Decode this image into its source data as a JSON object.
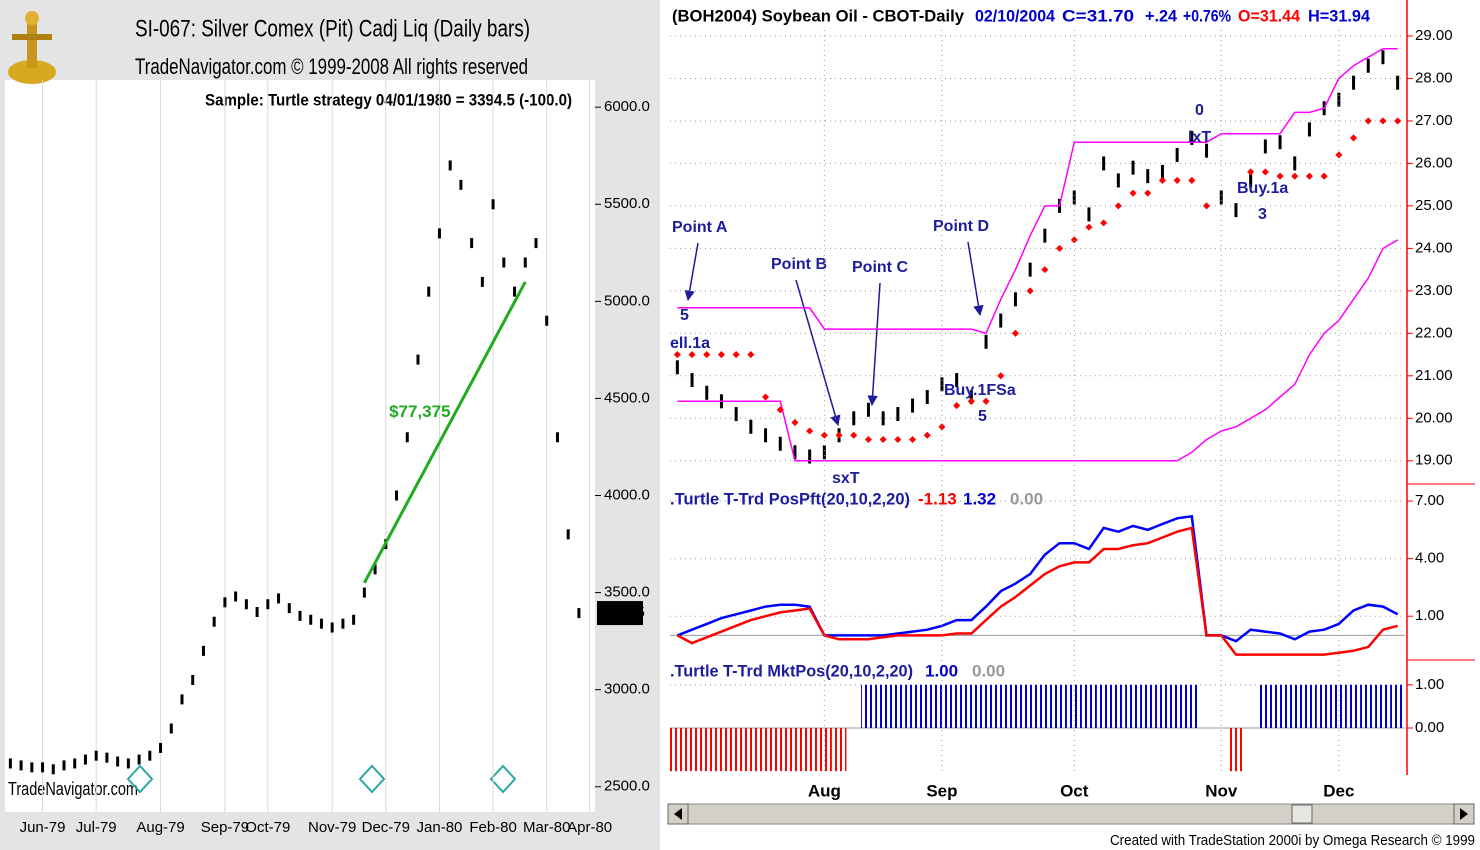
{
  "chart_data": [
    {
      "type": "dot",
      "title": "SI-067:  Silver Comex (Pit) Cadj Liq  (Daily bars)",
      "subtitle": "TradeNavigator.com © 1999-2008 All rights reserved",
      "annotation": "Sample: Turtle strategy   04/01/1980 = 3394.5 (-100.0)",
      "watermark": "TradeNavigator.com",
      "last_value": 3394.5,
      "categories": [
        null,
        null,
        null,
        "Jun-79",
        null,
        null,
        null,
        null,
        "Jul-79",
        null,
        null,
        null,
        null,
        null,
        "Aug-79",
        null,
        null,
        null,
        null,
        null,
        "Sep-79",
        null,
        null,
        null,
        "Oct-79",
        null,
        null,
        null,
        null,
        null,
        "Nov-79",
        null,
        null,
        null,
        null,
        "Dec-79",
        null,
        null,
        null,
        null,
        "Jan-80",
        null,
        null,
        null,
        null,
        "Feb-80",
        null,
        null,
        null,
        null,
        "Mar-80",
        null,
        null,
        null,
        "Apr-80"
      ],
      "series": [
        {
          "color": "#000000",
          "values": [
            2620,
            2610,
            2600,
            2600,
            2590,
            2610,
            2620,
            2640,
            2660,
            2650,
            2630,
            2620,
            2640,
            2660,
            2700,
            2800,
            2950,
            3050,
            3200,
            3350,
            3450,
            3480,
            3440,
            3400,
            3440,
            3470,
            3420,
            3380,
            3360,
            3340,
            3320,
            3340,
            3360,
            3500,
            3620,
            3750,
            4000,
            4300,
            4700,
            5050,
            5350,
            5700,
            5600,
            5300,
            5100,
            5500,
            5200,
            5050,
            5200,
            5300,
            4900,
            4300,
            3800,
            3394.5,
            null
          ]
        }
      ],
      "trade": {
        "label": "$77,375",
        "color": "#22aa22",
        "start": 33,
        "end": 48,
        "values": [
          3550,
          5100
        ]
      },
      "ylim": [
        2370,
        6140
      ],
      "yticks": [
        {
          "value": 2500,
          "label": "2500.0"
        },
        {
          "value": 3000,
          "label": "3000.0"
        },
        {
          "value": 3500,
          "label": "3500.0"
        },
        {
          "value": 4000,
          "label": "4000.0"
        },
        {
          "value": 4500,
          "label": "4500.0"
        },
        {
          "value": 5000,
          "label": "5000.0"
        },
        {
          "value": 5500,
          "label": "5500.0"
        },
        {
          "value": 6000,
          "label": "6000.0"
        }
      ],
      "grid": true
    },
    {
      "type": "price",
      "header": [
        {
          "text": "(BOH2004) Soybean Oil  - CBOT-Daily",
          "color": "#000000"
        },
        {
          "text": "02/10/2004",
          "color": "#0000cc"
        },
        {
          "text": "C=31.70",
          "color": "#0000cc"
        },
        {
          "text": "+.24",
          "color": "#0000cc"
        },
        {
          "text": "+0.76%",
          "color": "#0000cc"
        },
        {
          "text": "O=31.44",
          "color": "#ff0000"
        },
        {
          "text": "H=31.94",
          "color": "#0000cc"
        }
      ],
      "annotations": [
        "Point A",
        "Point B",
        "Point C",
        "Point D",
        "ell.1a",
        "Buy.1FSa",
        "sxT",
        "lxT",
        "Buy.1a",
        "5",
        "5",
        "0",
        "3"
      ],
      "series": [
        {
          "style": "bar",
          "color": "#000000",
          "values": [
            21.2,
            20.9,
            20.6,
            20.4,
            20.1,
            19.8,
            19.6,
            19.4,
            19.2,
            19.1,
            19.2,
            19.6,
            20.0,
            20.2,
            20.0,
            20.1,
            20.3,
            20.5,
            20.8,
            20.9,
            20.5,
            21.8,
            22.3,
            22.8,
            23.5,
            24.3,
            25.0,
            25.2,
            24.8,
            26.0,
            25.6,
            25.9,
            25.7,
            25.8,
            26.2,
            26.6,
            26.3,
            25.2,
            24.9,
            25.6,
            26.4,
            26.5,
            26.0,
            26.8,
            27.3,
            27.5,
            27.9,
            28.3,
            28.5,
            27.9
          ]
        },
        {
          "style": "line",
          "color": "#ff00ff",
          "values": [
            22.6,
            22.6,
            22.6,
            22.6,
            22.6,
            22.6,
            22.6,
            22.6,
            22.6,
            22.6,
            22.1,
            22.1,
            22.1,
            22.1,
            22.1,
            22.1,
            22.1,
            22.1,
            22.1,
            22.1,
            22.1,
            22.0,
            22.8,
            23.5,
            24.3,
            25.0,
            25.0,
            26.5,
            26.5,
            26.5,
            26.5,
            26.5,
            26.5,
            26.5,
            26.5,
            26.5,
            26.5,
            26.7,
            26.7,
            26.7,
            26.7,
            26.7,
            27.2,
            27.2,
            27.3,
            28.0,
            28.3,
            28.5,
            28.7,
            28.7
          ]
        },
        {
          "style": "line",
          "color": "#ff00ff",
          "values": [
            20.4,
            20.4,
            20.4,
            20.4,
            20.4,
            20.4,
            20.4,
            20.4,
            19.0,
            19.0,
            19.0,
            19.0,
            19.0,
            19.0,
            19.0,
            19.0,
            19.0,
            19.0,
            19.0,
            19.0,
            19.0,
            19.0,
            19.0,
            19.0,
            19.0,
            19.0,
            19.0,
            19.0,
            19.0,
            19.0,
            19.0,
            19.0,
            19.0,
            19.0,
            19.0,
            19.2,
            19.5,
            19.7,
            19.8,
            20.0,
            20.2,
            20.5,
            20.8,
            21.5,
            22.0,
            22.3,
            22.8,
            23.3,
            24.0,
            24.2
          ]
        },
        {
          "style": "dot",
          "color": "#ff0000",
          "values": [
            21.5,
            21.5,
            21.5,
            21.5,
            21.5,
            21.5,
            20.5,
            20.2,
            19.9,
            19.7,
            19.6,
            19.6,
            19.6,
            19.5,
            19.5,
            19.5,
            19.5,
            19.6,
            19.8,
            20.3,
            20.4,
            20.4,
            21.0,
            22.0,
            23.0,
            23.5,
            24.0,
            24.2,
            24.5,
            24.6,
            25.0,
            25.3,
            25.3,
            25.6,
            25.6,
            25.6,
            25.0,
            null,
            null,
            25.8,
            25.8,
            25.7,
            25.7,
            25.7,
            25.7,
            26.2,
            26.6,
            27.0,
            27.0,
            27.0
          ]
        }
      ],
      "ylim": [
        18.5,
        29.8
      ],
      "yticks": [
        {
          "value": 19,
          "label": "19.00"
        },
        {
          "value": 20,
          "label": "20.00"
        },
        {
          "value": 21,
          "label": "21.00"
        },
        {
          "value": 22,
          "label": "22.00"
        },
        {
          "value": 23,
          "label": "23.00"
        },
        {
          "value": 24,
          "label": "24.00"
        },
        {
          "value": 25,
          "label": "25.00"
        },
        {
          "value": 26,
          "label": "26.00"
        },
        {
          "value": 27,
          "label": "27.00"
        },
        {
          "value": 28,
          "label": "28.00"
        },
        {
          "value": 29,
          "label": "29.00"
        }
      ],
      "grid": true
    },
    {
      "type": "line",
      "label": ".Turtle T-Trd PosPft(20,10,2,20)",
      "readouts": [
        -1.13,
        1.32,
        {
          "value": 0,
          "label": "0.00"
        }
      ],
      "readout_colors": [
        "#ff0000",
        "#0000cc",
        "#999999"
      ],
      "series": [
        {
          "color": "#0000ff",
          "values": [
            0.0,
            0.3,
            0.6,
            0.9,
            1.1,
            1.3,
            1.5,
            1.6,
            1.6,
            1.5,
            0.0,
            0.0,
            0.0,
            0.0,
            0.0,
            0.1,
            0.2,
            0.3,
            0.5,
            0.8,
            0.8,
            1.5,
            2.3,
            2.7,
            3.2,
            4.2,
            4.8,
            4.8,
            4.5,
            5.6,
            5.4,
            5.7,
            5.5,
            5.8,
            6.1,
            6.2,
            0.0,
            0.0,
            -0.3,
            0.3,
            0.2,
            0.1,
            -0.2,
            0.2,
            0.3,
            0.6,
            1.3,
            1.6,
            1.5,
            1.1
          ]
        },
        {
          "color": "#ff0000",
          "values": [
            0.0,
            -0.4,
            -0.1,
            0.2,
            0.5,
            0.8,
            1.0,
            1.2,
            1.3,
            1.4,
            0.0,
            -0.2,
            -0.2,
            -0.2,
            -0.1,
            0.0,
            0.0,
            0.0,
            0.0,
            0.1,
            0.1,
            0.8,
            1.5,
            2.0,
            2.6,
            3.2,
            3.6,
            3.8,
            3.8,
            4.5,
            4.5,
            4.7,
            4.8,
            5.1,
            5.4,
            5.6,
            0.0,
            0.0,
            -1.0,
            -1.0,
            -1.0,
            -1.0,
            -1.0,
            -1.0,
            -1.0,
            -0.9,
            -0.8,
            -0.6,
            0.3,
            0.5
          ]
        }
      ],
      "ylim": [
        -1.28,
        7.78
      ],
      "yticks": [
        {
          "value": 7,
          "label": "7.00"
        },
        {
          "value": 4,
          "label": "4.00"
        },
        {
          "value": 1,
          "label": "1.00"
        }
      ],
      "grid": true
    },
    {
      "type": "column",
      "label": ".Turtle T-Trd MktPos(20,10,2,20)",
      "readouts": [
        {
          "value": 1,
          "label": "1.00"
        },
        {
          "value": 0,
          "label": "0.00"
        }
      ],
      "readout_colors": [
        "#0000cc",
        "#999999"
      ],
      "categories": [
        null,
        null,
        null,
        null,
        null,
        null,
        null,
        null,
        null,
        null,
        "Aug",
        null,
        null,
        null,
        null,
        null,
        null,
        null,
        "Sep",
        null,
        null,
        null,
        null,
        null,
        null,
        null,
        null,
        "Oct",
        null,
        null,
        null,
        null,
        null,
        null,
        null,
        null,
        null,
        "Nov",
        null,
        null,
        null,
        null,
        null,
        null,
        null,
        "Dec",
        null,
        null,
        null,
        null
      ],
      "color": "#0000cc",
      "negative_color": "#ff0000",
      "values": [
        -1,
        -1,
        -1,
        -1,
        -1,
        -1,
        -1,
        -1,
        -1,
        -1,
        -1,
        -1,
        0,
        1,
        1,
        1,
        1,
        1,
        1,
        1,
        1,
        1,
        1,
        1,
        1,
        1,
        1,
        1,
        1,
        1,
        1,
        1,
        1,
        1,
        1,
        1,
        0,
        0,
        -1,
        0,
        1,
        1,
        1,
        1,
        1,
        1,
        1,
        1,
        1,
        1
      ],
      "ylim": [
        -1.09,
        1.53
      ],
      "yticks": [
        {
          "value": 1,
          "label": "1.00"
        },
        {
          "value": 0,
          "label": "0.00"
        }
      ],
      "grid": true
    }
  ],
  "footer": "Created with TradeStation 2000i by Omega Research © 1999"
}
